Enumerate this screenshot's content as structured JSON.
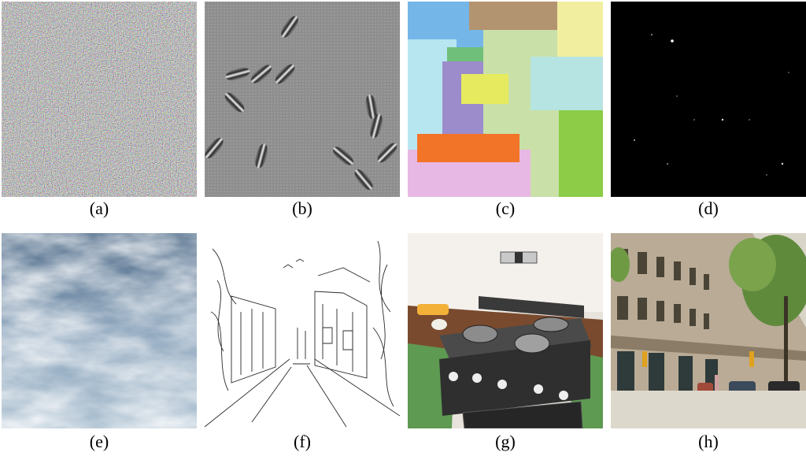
{
  "figure": {
    "captions": [
      "(a)",
      "(b)",
      "(c)",
      "(d)",
      "(e)",
      "(f)",
      "(g)",
      "(h)"
    ]
  }
}
